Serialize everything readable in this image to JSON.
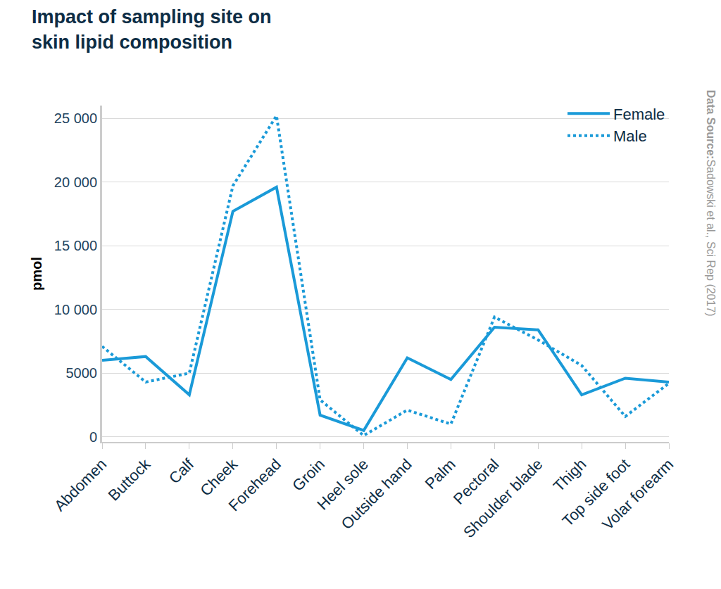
{
  "chart_data": {
    "type": "line",
    "title": "Impact of sampling site on skin lipid composition",
    "y_label": "pmol",
    "source_label": "Data Source:",
    "source": "Sadowski et al., Sci Rep (2017)",
    "categories": [
      "Abdomen",
      "Buttock",
      "Calf",
      "Cheek",
      "Forehead",
      "Groin",
      "Heel sole",
      "Outside hand",
      "Palm",
      "Pectoral",
      "Shoulder blade",
      "Thigh",
      "Top side foot",
      "Volar forearm"
    ],
    "series": [
      {
        "name": "Female",
        "color": "#1a9ad8",
        "line_style": "solid",
        "values": [
          6000,
          6300,
          3300,
          17700,
          19600,
          1700,
          500,
          6200,
          4500,
          8600,
          8400,
          3300,
          4600,
          4300
        ]
      },
      {
        "name": "Male",
        "color": "#1a9ad8",
        "line_style": "dotted",
        "values": [
          7100,
          4300,
          5000,
          19700,
          25200,
          2900,
          100,
          2100,
          1000,
          9400,
          7600,
          5600,
          1600,
          4200
        ]
      }
    ],
    "ylim": [
      -400,
      26000
    ],
    "yticks": [
      0,
      5000,
      {
        "value": 10000,
        "label": "10 000"
      },
      {
        "value": 15000,
        "label": "15 000"
      },
      {
        "value": 20000,
        "label": "20 000"
      },
      {
        "value": 25000,
        "label": "25 000"
      }
    ],
    "grid": true,
    "legend": "top-right"
  }
}
